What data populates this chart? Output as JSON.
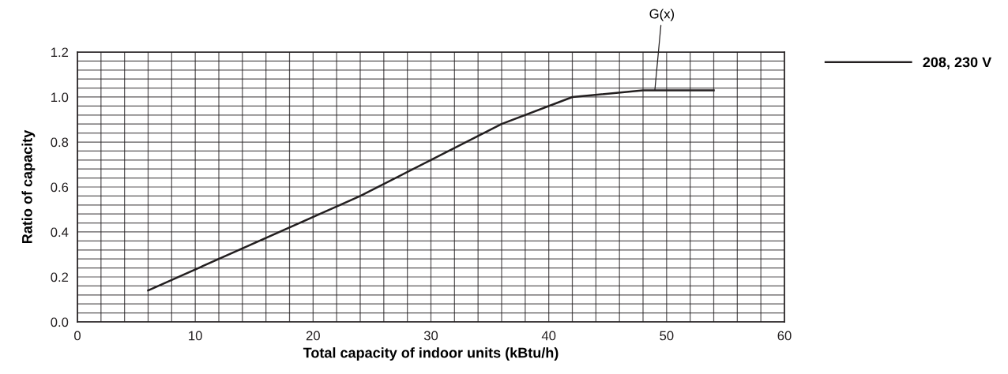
{
  "chart_data": {
    "type": "line",
    "xlabel": "Total capacity of indoor units (kBtu/h)",
    "ylabel": "Ratio of capacity",
    "x": [
      6,
      24,
      36,
      42,
      48,
      54
    ],
    "series": [
      {
        "name": "208, 230 V",
        "color": "#231f20",
        "values": [
          0.14,
          0.56,
          0.88,
          1.0,
          1.03,
          1.03
        ]
      }
    ],
    "xlim": [
      0,
      60
    ],
    "ylim": [
      0,
      1.2
    ],
    "xticks": [
      0,
      {
        "value": 2,
        "label": null
      },
      {
        "value": 4,
        "label": null
      },
      {
        "value": 6,
        "label": null
      },
      {
        "value": 8,
        "label": null
      },
      10,
      {
        "value": 12,
        "label": null
      },
      {
        "value": 14,
        "label": null
      },
      {
        "value": 16,
        "label": null
      },
      {
        "value": 18,
        "label": null
      },
      20,
      {
        "value": 22,
        "label": null
      },
      {
        "value": 24,
        "label": null
      },
      {
        "value": 26,
        "label": null
      },
      {
        "value": 28,
        "label": null
      },
      30,
      {
        "value": 32,
        "label": null
      },
      {
        "value": 34,
        "label": null
      },
      {
        "value": 36,
        "label": null
      },
      {
        "value": 38,
        "label": null
      },
      40,
      {
        "value": 42,
        "label": null
      },
      {
        "value": 44,
        "label": null
      },
      {
        "value": 46,
        "label": null
      },
      {
        "value": 48,
        "label": null
      },
      50,
      {
        "value": 52,
        "label": null
      },
      {
        "value": 54,
        "label": null
      },
      {
        "value": 56,
        "label": null
      },
      {
        "value": 58,
        "label": null
      },
      60
    ],
    "yticks": [
      {
        "value": 0,
        "label": "0.0"
      },
      {
        "value": 0.04,
        "label": null
      },
      {
        "value": 0.08,
        "label": null
      },
      {
        "value": 0.12,
        "label": null
      },
      {
        "value": 0.16,
        "label": null
      },
      {
        "value": 0.2,
        "label": "0.2"
      },
      {
        "value": 0.24,
        "label": null
      },
      {
        "value": 0.28,
        "label": null
      },
      {
        "value": 0.32,
        "label": null
      },
      {
        "value": 0.36,
        "label": null
      },
      {
        "value": 0.4,
        "label": "0.4"
      },
      {
        "value": 0.44,
        "label": null
      },
      {
        "value": 0.48,
        "label": null
      },
      {
        "value": 0.52,
        "label": null
      },
      {
        "value": 0.56,
        "label": null
      },
      {
        "value": 0.6,
        "label": "0.6"
      },
      {
        "value": 0.64,
        "label": null
      },
      {
        "value": 0.68,
        "label": null
      },
      {
        "value": 0.72,
        "label": null
      },
      {
        "value": 0.76,
        "label": null
      },
      {
        "value": 0.8,
        "label": "0.8"
      },
      {
        "value": 0.84,
        "label": null
      },
      {
        "value": 0.88,
        "label": null
      },
      {
        "value": 0.92,
        "label": null
      },
      {
        "value": 0.96,
        "label": null
      },
      {
        "value": 1.0,
        "label": "1.0"
      },
      {
        "value": 1.04,
        "label": null
      },
      {
        "value": 1.08,
        "label": null
      },
      {
        "value": 1.12,
        "label": null
      },
      {
        "value": 1.16,
        "label": null
      },
      {
        "value": 1.2,
        "label": "1.2"
      }
    ],
    "grid": true,
    "legend": "top right",
    "marker": "none",
    "line_style": "solid",
    "annotations": [
      {
        "text": "G(x)",
        "x": 49,
        "y": 1.03
      }
    ]
  }
}
